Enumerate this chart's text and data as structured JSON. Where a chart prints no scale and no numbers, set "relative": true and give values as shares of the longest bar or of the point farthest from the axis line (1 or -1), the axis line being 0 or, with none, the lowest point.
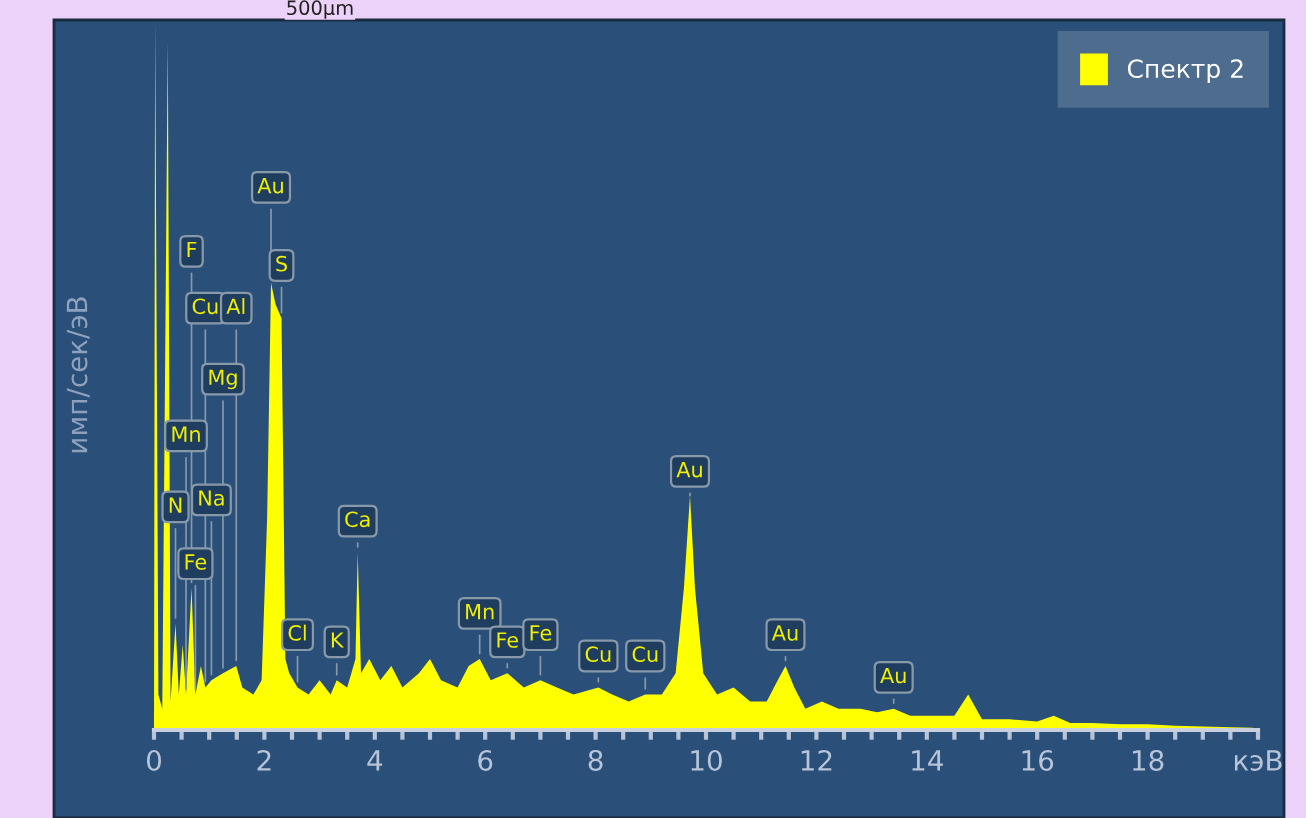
{
  "chart_data": {
    "type": "area",
    "relative": true,
    "ylabel": "имп/сек/эВ",
    "legend": "top right",
    "grid": false,
    "xlim": [
      0,
      20
    ],
    "xticks": [
      0,
      {
        "value": 0.5,
        "label": null
      },
      {
        "value": 1,
        "label": null
      },
      {
        "value": 1.5,
        "label": null
      },
      2,
      {
        "value": 2.5,
        "label": null
      },
      {
        "value": 3,
        "label": null
      },
      {
        "value": 3.5,
        "label": null
      },
      4,
      {
        "value": 4.5,
        "label": null
      },
      {
        "value": 5,
        "label": null
      },
      {
        "value": 5.5,
        "label": null
      },
      6,
      {
        "value": 6.5,
        "label": null
      },
      {
        "value": 7,
        "label": null
      },
      {
        "value": 7.5,
        "label": null
      },
      8,
      {
        "value": 8.5,
        "label": null
      },
      {
        "value": 9,
        "label": null
      },
      {
        "value": 9.5,
        "label": null
      },
      10,
      {
        "value": 10.5,
        "label": null
      },
      {
        "value": 11,
        "label": null
      },
      {
        "value": 11.5,
        "label": null
      },
      12,
      {
        "value": 12.5,
        "label": null
      },
      {
        "value": 13,
        "label": null
      },
      {
        "value": 13.5,
        "label": null
      },
      14,
      {
        "value": 14.5,
        "label": null
      },
      {
        "value": 15,
        "label": null
      },
      {
        "value": 15.5,
        "label": null
      },
      16,
      {
        "value": 16.5,
        "label": null
      },
      {
        "value": 17,
        "label": null
      },
      {
        "value": 17.5,
        "label": null
      },
      18,
      {
        "value": 18.5,
        "label": null
      },
      {
        "value": 19,
        "label": null
      },
      {
        "value": 19.5,
        "label": null
      },
      {
        "value": 20,
        "label": "кэВ"
      }
    ],
    "series": [
      {
        "name": "Спектр 2",
        "color": "#ffff00",
        "x": [
          0,
          0.02,
          0.08,
          0.15,
          0.25,
          0.3,
          0.39,
          0.45,
          0.52,
          0.58,
          0.68,
          0.75,
          0.85,
          0.93,
          1.04,
          1.25,
          1.49,
          1.6,
          1.8,
          1.95,
          2.05,
          2.12,
          2.2,
          2.31,
          2.38,
          2.45,
          2.6,
          2.8,
          3.0,
          3.2,
          3.31,
          3.5,
          3.65,
          3.69,
          3.75,
          3.9,
          4.1,
          4.3,
          4.5,
          4.8,
          5.0,
          5.2,
          5.5,
          5.7,
          5.9,
          6.1,
          6.4,
          6.7,
          7.0,
          7.3,
          7.6,
          8.05,
          8.3,
          8.6,
          8.9,
          9.2,
          9.45,
          9.6,
          9.71,
          9.8,
          9.95,
          10.2,
          10.5,
          10.8,
          11.1,
          11.3,
          11.44,
          11.6,
          11.8,
          12.1,
          12.4,
          12.8,
          13.1,
          13.4,
          13.7,
          14.0,
          14.5,
          14.75,
          15.0,
          15.5,
          16.0,
          16.3,
          16.6,
          17.0,
          17.5,
          18.0,
          18.5,
          19.0,
          19.5,
          19.9,
          20.0
        ],
        "values": [
          0,
          1.0,
          0.05,
          0.03,
          0.97,
          0.04,
          0.15,
          0.05,
          0.12,
          0.05,
          0.2,
          0.05,
          0.09,
          0.06,
          0.07,
          0.08,
          0.09,
          0.06,
          0.05,
          0.07,
          0.3,
          0.63,
          0.6,
          0.58,
          0.1,
          0.08,
          0.06,
          0.05,
          0.07,
          0.05,
          0.07,
          0.06,
          0.1,
          0.25,
          0.08,
          0.1,
          0.07,
          0.09,
          0.06,
          0.08,
          0.1,
          0.07,
          0.06,
          0.09,
          0.1,
          0.07,
          0.08,
          0.06,
          0.07,
          0.06,
          0.05,
          0.06,
          0.05,
          0.04,
          0.05,
          0.05,
          0.08,
          0.2,
          0.33,
          0.2,
          0.08,
          0.05,
          0.06,
          0.04,
          0.04,
          0.07,
          0.09,
          0.06,
          0.03,
          0.04,
          0.03,
          0.03,
          0.025,
          0.03,
          0.02,
          0.02,
          0.02,
          0.05,
          0.015,
          0.015,
          0.012,
          0.02,
          0.01,
          0.01,
          0.008,
          0.008,
          0.006,
          0.005,
          0.004,
          0.003,
          0
        ]
      }
    ],
    "annotations": [
      "500μm",
      {
        "text": "Au",
        "x": 2.12,
        "y": 0.63
      },
      {
        "text": "S",
        "x": 2.31,
        "y": 0.58
      },
      {
        "text": "F",
        "x": 0.68,
        "y": 0.2
      },
      {
        "text": "Cu",
        "x": 0.93,
        "y": 0.06
      },
      {
        "text": "Mn",
        "x": 0.58,
        "y": 0.05
      },
      {
        "text": "Al",
        "x": 1.49,
        "y": 0.09
      },
      {
        "text": "N",
        "x": 0.39,
        "y": 0.15
      },
      {
        "text": "Mg",
        "x": 1.25,
        "y": 0.08
      },
      {
        "text": "Na",
        "x": 1.04,
        "y": 0.07
      },
      {
        "text": "Fe",
        "x": 0.75,
        "y": 0.05
      },
      {
        "text": "Cl",
        "x": 2.6,
        "y": 0.06
      },
      {
        "text": "K",
        "x": 3.31,
        "y": 0.07
      },
      {
        "text": "Ca",
        "x": 3.69,
        "y": 0.25
      },
      {
        "text": "Mn",
        "x": 5.9,
        "y": 0.1
      },
      {
        "text": "Fe",
        "x": 6.4,
        "y": 0.08
      },
      {
        "text": "Fe",
        "x": 7.0,
        "y": 0.07
      },
      {
        "text": "Cu",
        "x": 8.05,
        "y": 0.06
      },
      {
        "text": "Cu",
        "x": 8.9,
        "y": 0.05
      },
      {
        "text": "Au",
        "x": 9.71,
        "y": 0.33
      },
      {
        "text": "Au",
        "x": 11.44,
        "y": 0.09
      },
      {
        "text": "Au",
        "x": 13.4,
        "y": 0.03
      }
    ]
  }
}
